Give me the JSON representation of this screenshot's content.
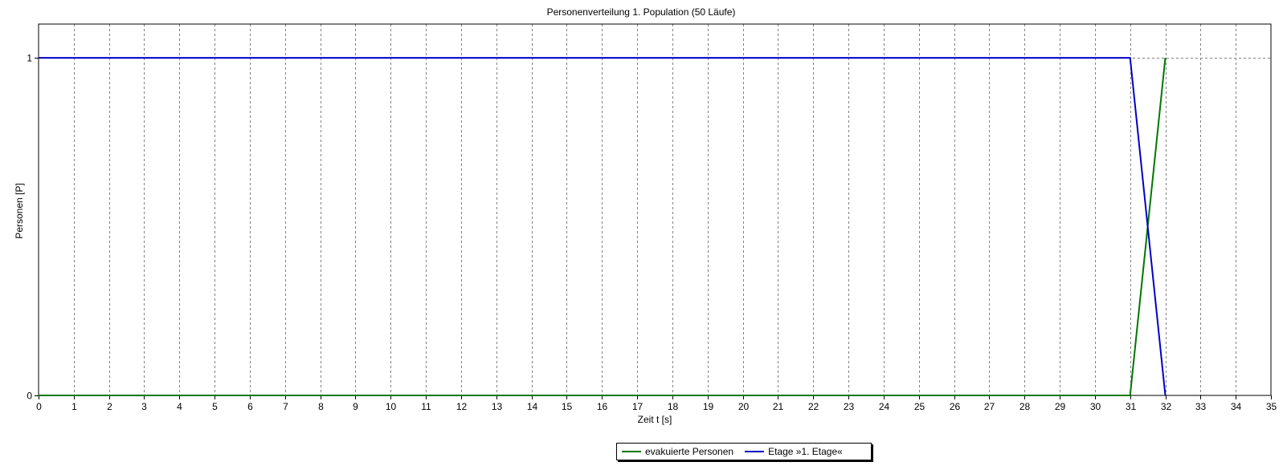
{
  "chart_data": {
    "type": "line",
    "title": "Personenverteilung 1. Population (50 Läufe)",
    "xlabel": "Zeit t [s]",
    "ylabel": "Personen [P]",
    "xlim": [
      0,
      35
    ],
    "ylim": [
      0,
      1.1
    ],
    "xticks": [
      0,
      1,
      2,
      3,
      4,
      5,
      6,
      7,
      8,
      9,
      10,
      11,
      12,
      13,
      14,
      15,
      16,
      17,
      18,
      19,
      20,
      21,
      22,
      23,
      24,
      25,
      26,
      27,
      28,
      29,
      30,
      31,
      32,
      33,
      34,
      35
    ],
    "yticks": [
      0,
      1
    ],
    "grid": true,
    "grid_style": "dashed",
    "legend_position": "bottom",
    "series": [
      {
        "name": "evakuierte Personen",
        "color": "#007800",
        "x": [
          0,
          31,
          32
        ],
        "y": [
          0,
          0,
          1
        ]
      },
      {
        "name": "Etage »1. Etage«",
        "color": "#0000c8",
        "x": [
          0,
          31,
          32
        ],
        "y": [
          1,
          1,
          0
        ]
      }
    ]
  }
}
